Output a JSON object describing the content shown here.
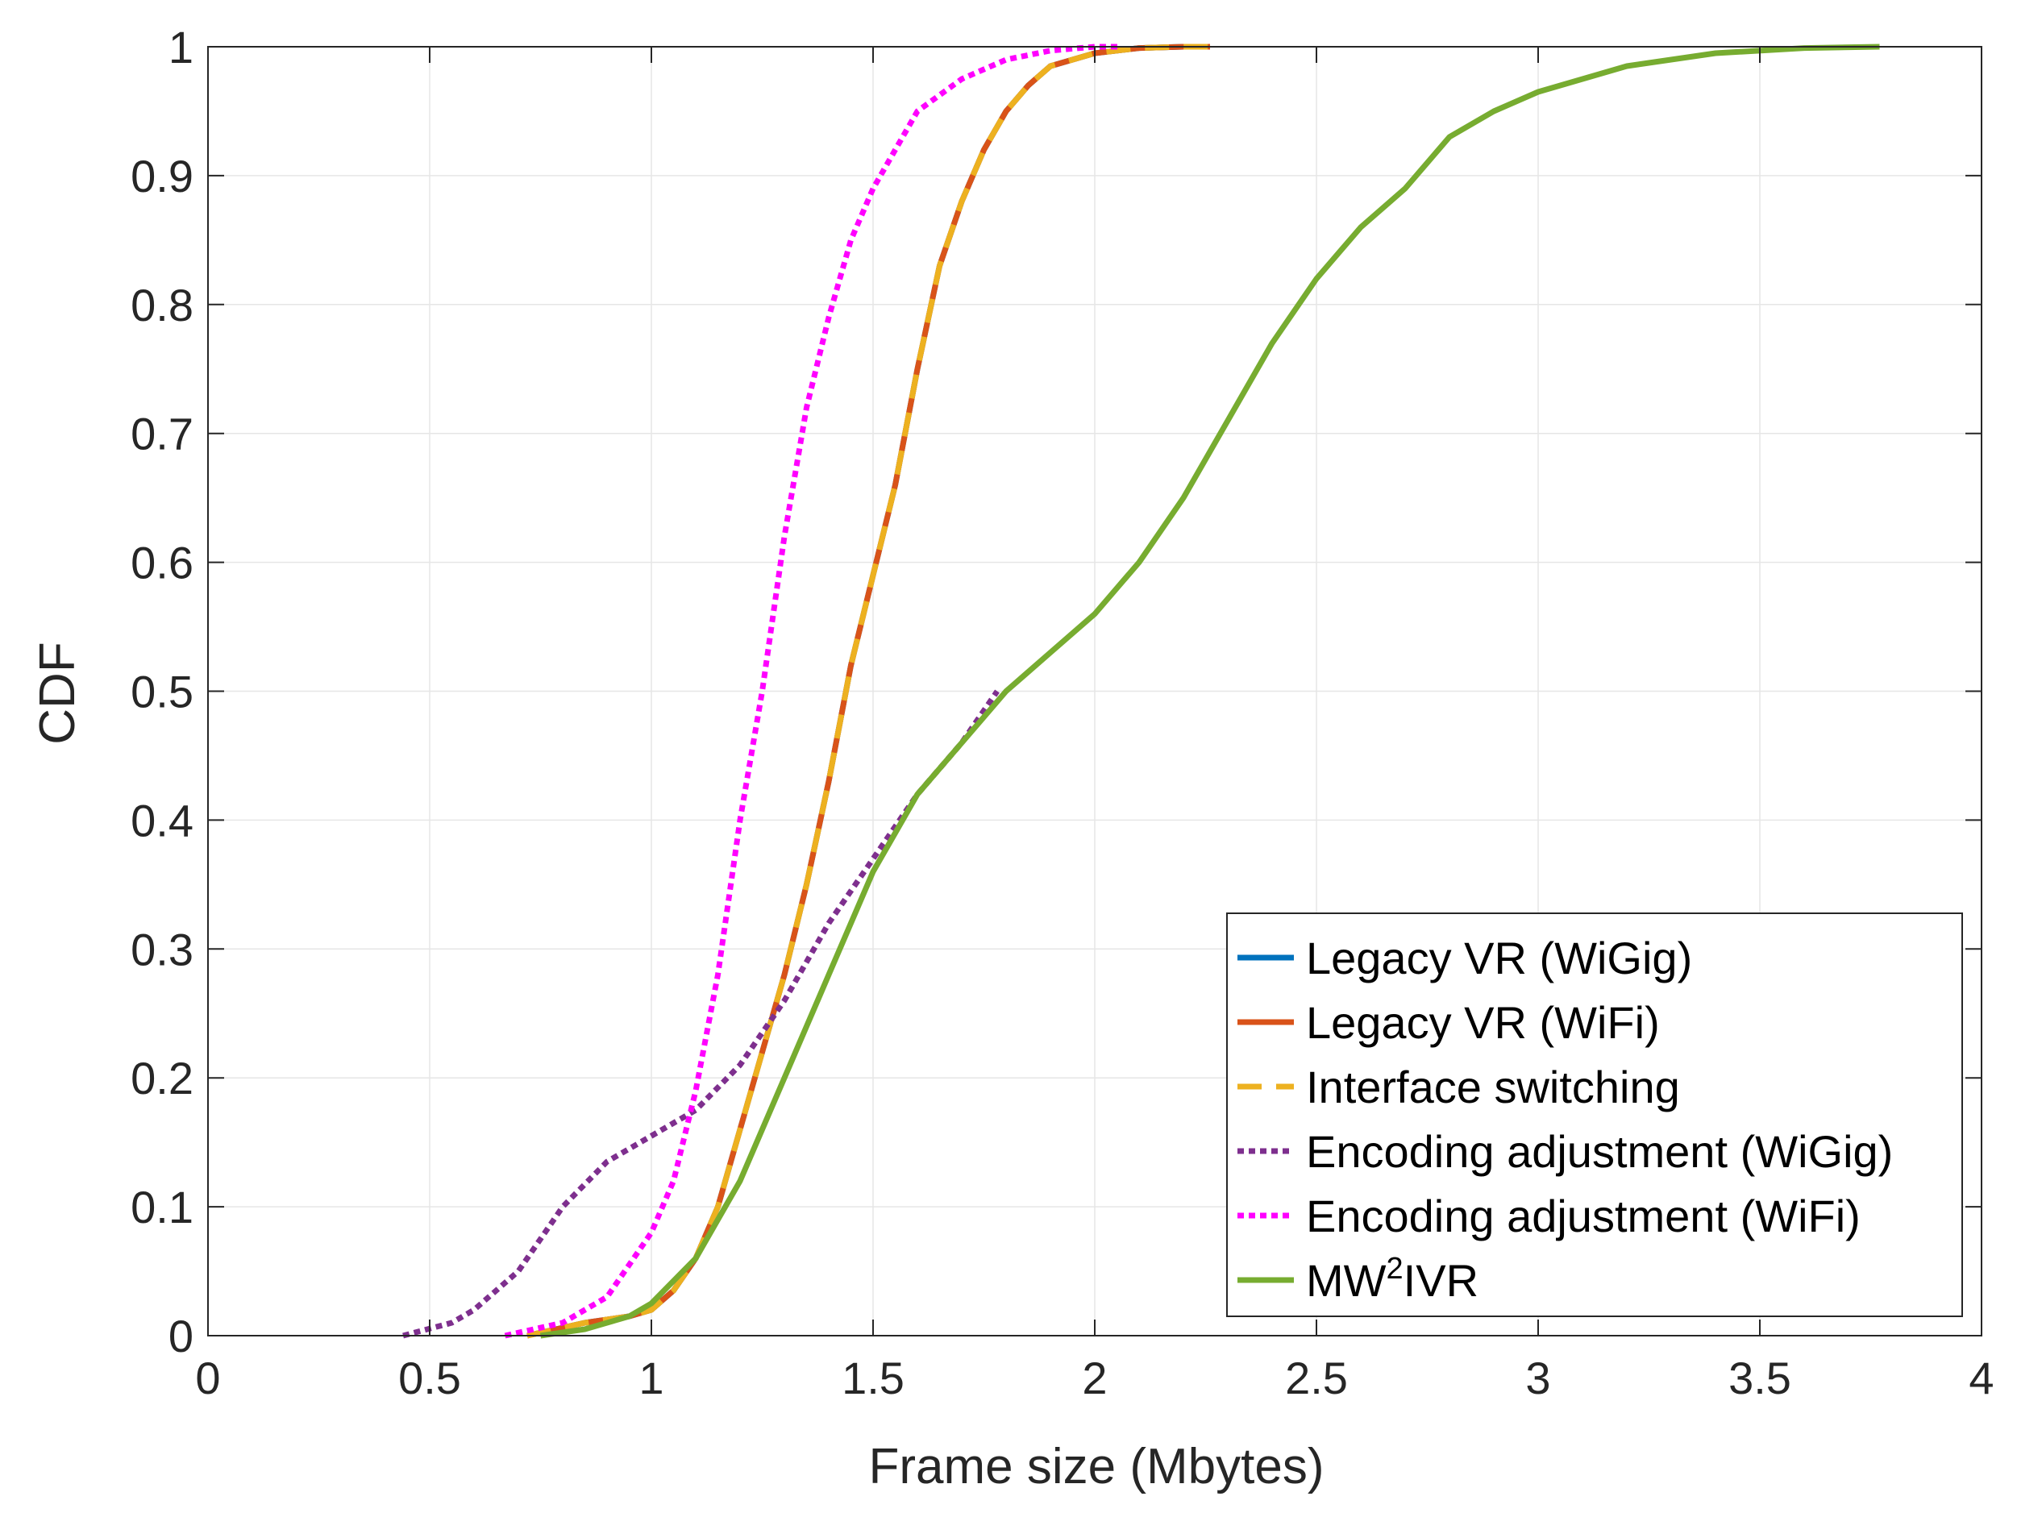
{
  "chart_data": {
    "type": "line",
    "title": "",
    "xlabel": "Frame size (Mbytes)",
    "ylabel": "CDF",
    "xlim": [
      0,
      4
    ],
    "ylim": [
      0,
      1
    ],
    "xticks": [
      0,
      0.5,
      1,
      1.5,
      2,
      2.5,
      3,
      3.5,
      4
    ],
    "xtick_labels": [
      "0",
      "0.5",
      "1",
      "1.5",
      "2",
      "2.5",
      "3",
      "3.5",
      "4"
    ],
    "yticks": [
      0,
      0.1,
      0.2,
      0.3,
      0.4,
      0.5,
      0.6,
      0.7,
      0.8,
      0.9,
      1
    ],
    "ytick_labels": [
      "0",
      "0.1",
      "0.2",
      "0.3",
      "0.4",
      "0.5",
      "0.6",
      "0.7",
      "0.8",
      "0.9",
      "1"
    ],
    "grid": true,
    "legend_position": "bottom-right",
    "series": [
      {
        "name": "Legacy VR (WiGig)",
        "label_main": "Legacy VR (WiGig)",
        "label_sup": "",
        "label_tail": "",
        "color": "#0072BD",
        "dash": "solid",
        "x": [
          0.72,
          0.85,
          0.95,
          1.0,
          1.05,
          1.1,
          1.15,
          1.2,
          1.25,
          1.3,
          1.35,
          1.4,
          1.45,
          1.5,
          1.55,
          1.6,
          1.65,
          1.7,
          1.75,
          1.8,
          1.85,
          1.9,
          2.0,
          2.1,
          2.2,
          2.26
        ],
        "y": [
          0.0,
          0.01,
          0.015,
          0.02,
          0.035,
          0.06,
          0.1,
          0.16,
          0.22,
          0.28,
          0.35,
          0.43,
          0.52,
          0.59,
          0.66,
          0.75,
          0.83,
          0.88,
          0.92,
          0.95,
          0.97,
          0.985,
          0.995,
          0.999,
          1.0,
          1.0
        ]
      },
      {
        "name": "Legacy VR (WiFi)",
        "label_main": "Legacy VR (WiFi)",
        "label_sup": "",
        "label_tail": "",
        "color": "#D95319",
        "dash": "solid",
        "x": [
          0.72,
          0.85,
          0.95,
          1.0,
          1.05,
          1.1,
          1.15,
          1.2,
          1.25,
          1.3,
          1.35,
          1.4,
          1.45,
          1.5,
          1.55,
          1.6,
          1.65,
          1.7,
          1.75,
          1.8,
          1.85,
          1.9,
          2.0,
          2.1,
          2.2,
          2.26
        ],
        "y": [
          0.0,
          0.01,
          0.015,
          0.02,
          0.035,
          0.06,
          0.1,
          0.16,
          0.22,
          0.28,
          0.35,
          0.43,
          0.52,
          0.59,
          0.66,
          0.75,
          0.83,
          0.88,
          0.92,
          0.95,
          0.97,
          0.985,
          0.995,
          0.999,
          1.0,
          1.0
        ]
      },
      {
        "name": "Interface switching",
        "label_main": "Interface switching",
        "label_sup": "",
        "label_tail": "",
        "color": "#EDB120",
        "dash": "dashed",
        "x": [
          0.72,
          0.85,
          0.95,
          1.0,
          1.05,
          1.1,
          1.15,
          1.2,
          1.25,
          1.3,
          1.35,
          1.4,
          1.45,
          1.5,
          1.55,
          1.6,
          1.65,
          1.7,
          1.75,
          1.8,
          1.85,
          1.9,
          2.0,
          2.1,
          2.2,
          2.26
        ],
        "y": [
          0.0,
          0.01,
          0.015,
          0.02,
          0.035,
          0.06,
          0.1,
          0.16,
          0.22,
          0.28,
          0.35,
          0.43,
          0.52,
          0.59,
          0.66,
          0.75,
          0.83,
          0.88,
          0.92,
          0.95,
          0.97,
          0.985,
          0.995,
          0.999,
          1.0,
          1.0
        ]
      },
      {
        "name": "Encoding adjustment (WiGig)",
        "label_main": "Encoding adjustment (WiGig)",
        "label_sup": "",
        "label_tail": "",
        "color": "#7E2F8E",
        "dash": "dotted",
        "x": [
          0.44,
          0.55,
          0.6,
          0.7,
          0.8,
          0.9,
          1.0,
          1.05,
          1.1,
          1.2,
          1.3,
          1.4,
          1.5,
          1.6,
          1.7,
          1.78
        ],
        "y": [
          0.0,
          0.01,
          0.02,
          0.05,
          0.1,
          0.135,
          0.155,
          0.165,
          0.175,
          0.21,
          0.26,
          0.32,
          0.37,
          0.42,
          0.46,
          0.5
        ]
      },
      {
        "name": "Encoding adjustment (WiFi)",
        "label_main": "Encoding adjustment (WiFi)",
        "label_sup": "",
        "label_tail": "",
        "color": "#FF00FF",
        "dash": "dotted",
        "x": [
          0.67,
          0.8,
          0.9,
          1.0,
          1.05,
          1.1,
          1.15,
          1.2,
          1.25,
          1.3,
          1.35,
          1.4,
          1.45,
          1.5,
          1.55,
          1.6,
          1.7,
          1.8,
          1.9,
          2.0,
          2.06
        ],
        "y": [
          0.0,
          0.01,
          0.03,
          0.08,
          0.12,
          0.19,
          0.28,
          0.4,
          0.5,
          0.62,
          0.72,
          0.79,
          0.85,
          0.89,
          0.92,
          0.95,
          0.975,
          0.99,
          0.997,
          1.0,
          1.0
        ]
      },
      {
        "name": "MW2IVR",
        "label_main": "MW",
        "label_sup": "2",
        "label_tail": "IVR",
        "color": "#77AC30",
        "dash": "solid",
        "x": [
          0.75,
          0.85,
          0.95,
          1.0,
          1.1,
          1.2,
          1.3,
          1.4,
          1.5,
          1.6,
          1.7,
          1.8,
          1.9,
          2.0,
          2.1,
          2.2,
          2.3,
          2.4,
          2.5,
          2.6,
          2.7,
          2.8,
          2.9,
          3.0,
          3.1,
          3.2,
          3.4,
          3.6,
          3.77
        ],
        "y": [
          0.0,
          0.005,
          0.015,
          0.025,
          0.06,
          0.12,
          0.2,
          0.28,
          0.36,
          0.42,
          0.46,
          0.5,
          0.53,
          0.56,
          0.6,
          0.65,
          0.71,
          0.77,
          0.82,
          0.86,
          0.89,
          0.93,
          0.95,
          0.965,
          0.975,
          0.985,
          0.995,
          0.999,
          1.0
        ]
      }
    ]
  }
}
